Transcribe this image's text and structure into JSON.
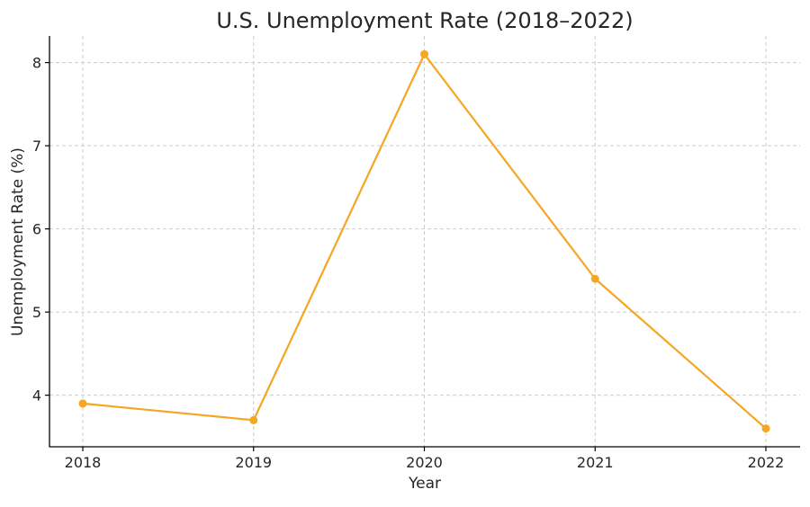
{
  "chart_data": {
    "type": "line",
    "title": "U.S. Unemployment Rate (2018–2022)",
    "xlabel": "Year",
    "ylabel": "Unemployment Rate (%)",
    "x": [
      "2018",
      "2019",
      "2020",
      "2021",
      "2022"
    ],
    "series": [
      {
        "values": [
          3.9,
          3.7,
          8.1,
          5.4,
          3.6
        ],
        "color": "#f5a623"
      }
    ],
    "yticks": [
      "4",
      "5",
      "6",
      "7",
      "8"
    ],
    "ylim": [
      3.38,
      8.32
    ],
    "grid": true,
    "marker": "circle"
  }
}
